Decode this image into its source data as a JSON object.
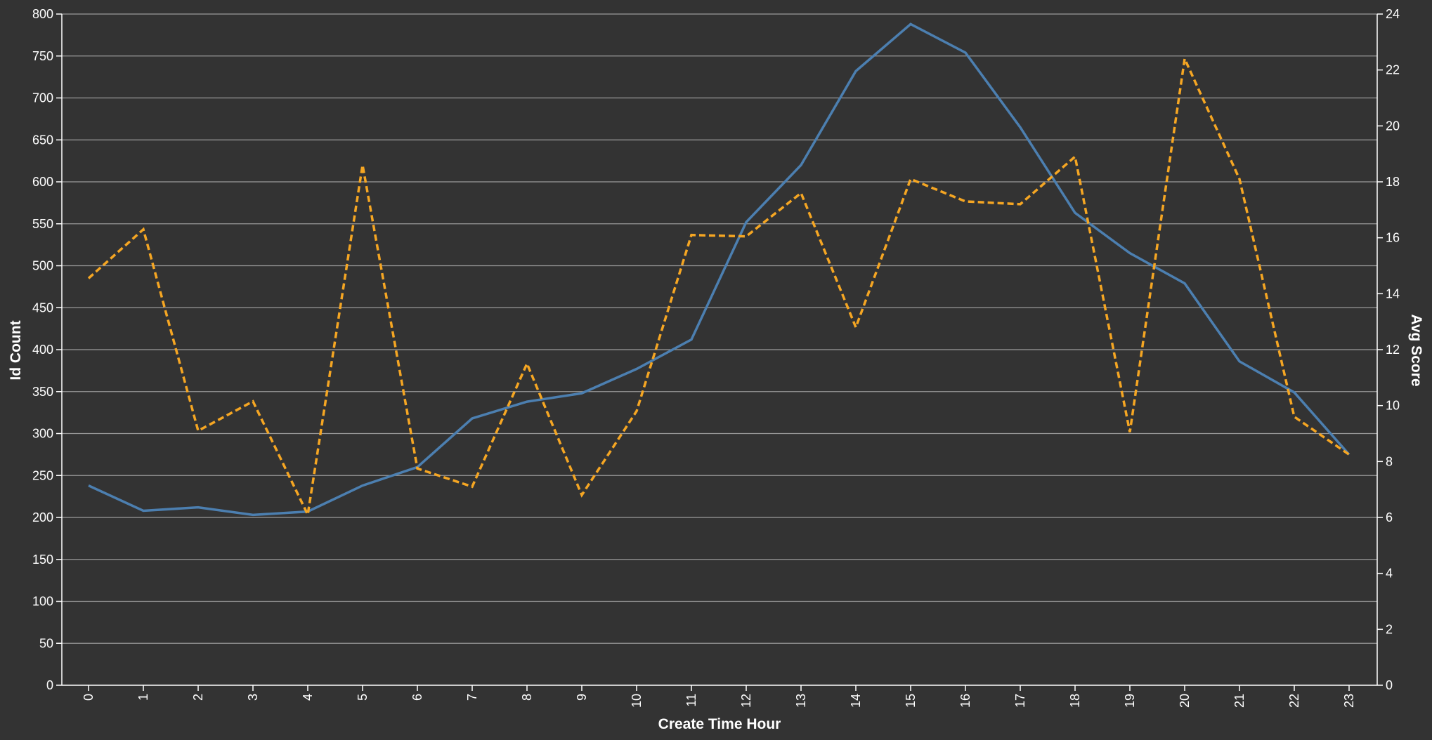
{
  "chart_data": {
    "type": "line",
    "x": [
      0,
      1,
      2,
      3,
      4,
      5,
      6,
      7,
      8,
      9,
      10,
      11,
      12,
      13,
      14,
      15,
      16,
      17,
      18,
      19,
      20,
      21,
      22,
      23
    ],
    "xlabel": "Create Time Hour",
    "ylabel": "Id Count",
    "y2label": "Avg Score",
    "ylim": [
      0,
      800
    ],
    "y2lim": [
      0,
      24
    ],
    "yticks": [
      0,
      50,
      100,
      150,
      200,
      250,
      300,
      350,
      400,
      450,
      500,
      550,
      600,
      650,
      700,
      750,
      800
    ],
    "y2ticks": [
      0,
      2,
      4,
      6,
      8,
      10,
      12,
      14,
      16,
      18,
      20,
      22,
      24
    ],
    "grid": true,
    "background": "#333333",
    "series": [
      {
        "axis": "left",
        "color": "#4c7fb0",
        "style": "solid",
        "values": [
          238,
          208,
          212,
          203,
          207,
          238,
          260,
          318,
          338,
          348,
          377,
          412,
          552,
          620,
          732,
          788,
          754,
          665,
          563,
          515,
          479,
          386,
          349,
          275
        ]
      },
      {
        "axis": "right",
        "color": "#f5a623",
        "style": "dashed",
        "values": [
          14.55,
          16.3,
          9.1,
          10.15,
          6.1,
          18.6,
          7.75,
          7.1,
          11.5,
          6.8,
          9.8,
          16.1,
          16.05,
          17.6,
          12.8,
          18.1,
          17.3,
          17.2,
          18.9,
          9.05,
          22.4,
          18.1,
          9.6,
          8.25
        ]
      }
    ]
  }
}
